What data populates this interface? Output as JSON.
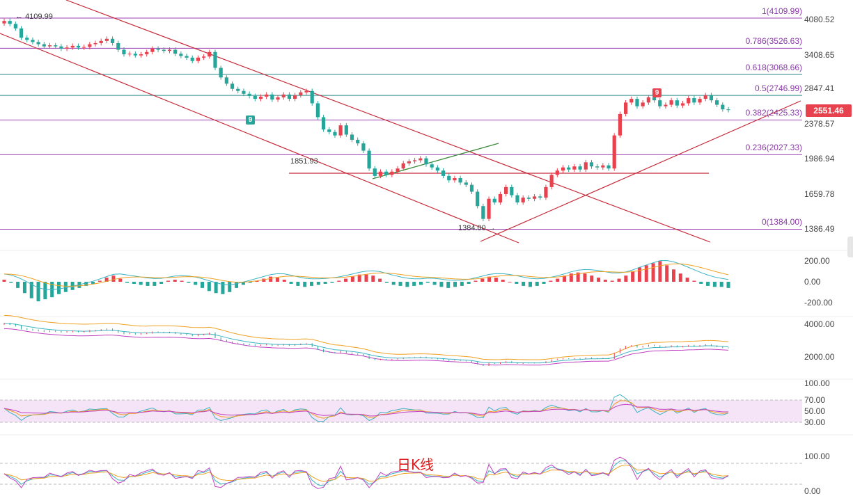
{
  "caption": "日K线",
  "current_price": "2551.46",
  "colors": {
    "up": "#e8424f",
    "down": "#26a69a",
    "fib": "#9c3fb5",
    "trend": "#c62b3a",
    "support": "#3a8a3a"
  },
  "chart_data": [
    {
      "type": "candlestick",
      "name": "price",
      "y_ticks": [
        "4080.52",
        "3408.65",
        "2847.41",
        "2378.57",
        "1986.94",
        "1659.78",
        "1386.49"
      ],
      "ylim": [
        1300,
        4200
      ],
      "fib_levels": [
        {
          "label": "1(4109.99)",
          "value": 4109.99
        },
        {
          "label": "0.786(3526.63)",
          "value": 3526.63
        },
        {
          "label": "0.618(3068.66)",
          "value": 3068.66
        },
        {
          "label": "0.5(2746.99)",
          "value": 2746.99
        },
        {
          "label": "0.382(2425.33)",
          "value": 2425.33
        },
        {
          "label": "0.236(2027.33)",
          "value": 2027.33
        },
        {
          "label": "0(1384.00)",
          "value": 1384.0
        }
      ],
      "annotations": [
        {
          "text": "4109.99"
        },
        {
          "text": "1851.93"
        },
        {
          "text": "1384.00"
        }
      ],
      "markers": [
        {
          "text": "9",
          "color": "#26a69a"
        },
        {
          "text": "9",
          "color": "#e8424f"
        }
      ],
      "closes": [
        4050,
        3990,
        3900,
        3720,
        3680,
        3640,
        3600,
        3560,
        3580,
        3560,
        3520,
        3540,
        3570,
        3540,
        3550,
        3600,
        3620,
        3660,
        3700,
        3620,
        3500,
        3420,
        3430,
        3400,
        3420,
        3460,
        3520,
        3500,
        3480,
        3500,
        3430,
        3390,
        3360,
        3300,
        3360,
        3380,
        3460,
        3180,
        3020,
        2920,
        2840,
        2810,
        2770,
        2740,
        2700,
        2730,
        2760,
        2690,
        2720,
        2760,
        2700,
        2750,
        2790,
        2810,
        2640,
        2460,
        2310,
        2280,
        2240,
        2360,
        2250,
        2190,
        2150,
        2070,
        1890,
        1820,
        1860,
        1830,
        1860,
        1890,
        1940,
        1960,
        1970,
        1990,
        1930,
        1900,
        1870,
        1820,
        1780,
        1800,
        1760,
        1740,
        1680,
        1560,
        1460,
        1620,
        1590,
        1660,
        1720,
        1650,
        1590,
        1630,
        1620,
        1640,
        1630,
        1720,
        1830,
        1870,
        1900,
        1880,
        1910,
        1880,
        1950,
        1910,
        1900,
        1920,
        1890,
        2240,
        2500,
        2650,
        2700,
        2600,
        2650,
        2720,
        2680,
        2600,
        2620,
        2680,
        2610,
        2640,
        2710,
        2650,
        2700,
        2750,
        2680,
        2620,
        2560,
        2551
      ],
      "histogram": [
        20,
        -10,
        -60,
        -110,
        -160,
        -190,
        -170,
        -150,
        -120,
        -100,
        -80,
        -60,
        -40,
        -20,
        10,
        40,
        60,
        30,
        -10,
        -20,
        -30,
        -40,
        -40,
        -20,
        10,
        20,
        10,
        -10,
        -30,
        -60,
        -90,
        -110,
        -120,
        -100,
        -60,
        -30,
        -10,
        10,
        30,
        50,
        40,
        20,
        -20,
        -40,
        -50,
        -40,
        -30,
        -20,
        -10,
        10,
        30,
        50,
        70,
        70,
        60,
        30,
        -10,
        -30,
        -40,
        -50,
        -40,
        -30,
        -10,
        -30,
        -50,
        -60,
        -50,
        -40,
        -20,
        10,
        30,
        50,
        40,
        20,
        0,
        -20,
        -40,
        -50,
        -40,
        -20,
        10,
        30,
        60,
        80,
        90,
        80,
        60,
        40,
        20,
        10,
        30,
        60,
        100,
        140,
        160,
        180,
        200,
        160,
        120,
        80,
        40,
        10,
        -20,
        -40,
        -50,
        -50,
        -60
      ]
    }
  ],
  "oscillators": {
    "macd": {
      "ticks": [
        "200.00",
        "0.00",
        "-200.00"
      ]
    },
    "boll": {
      "ticks": [
        "4000.00",
        "2000.00"
      ]
    },
    "rsi": {
      "ticks": [
        "100.00",
        "70.00",
        "50.00",
        "30.00"
      ]
    },
    "kdj": {
      "ticks": [
        "100.00",
        "0.00"
      ]
    }
  }
}
